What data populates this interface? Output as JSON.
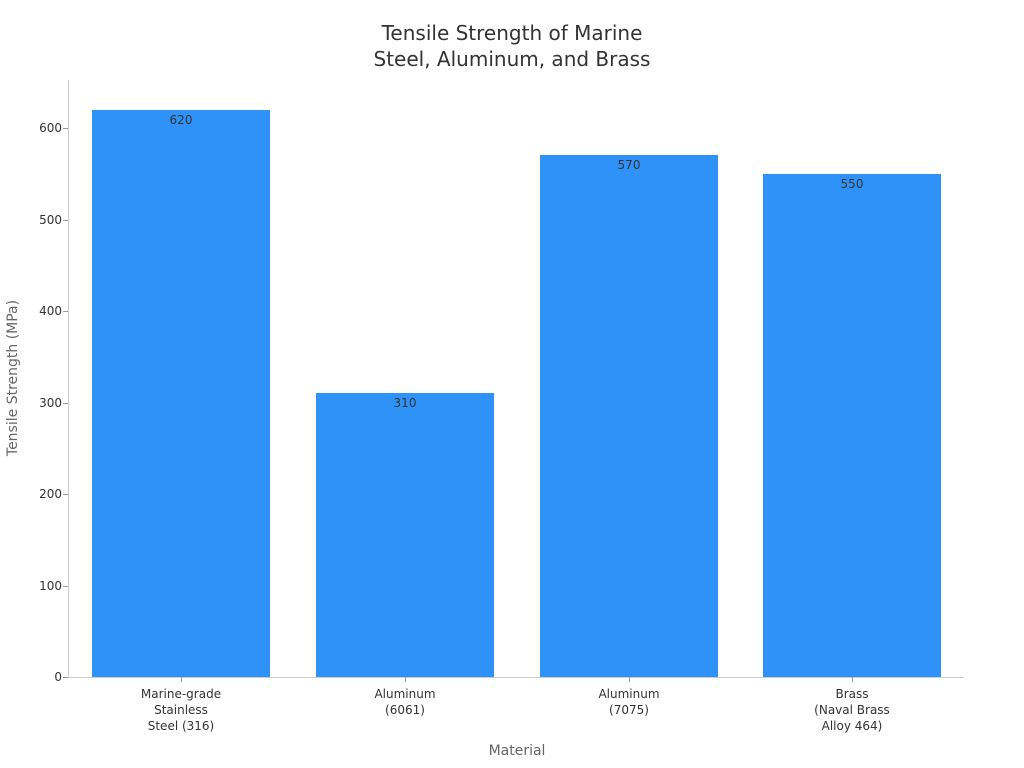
{
  "chart_data": {
    "type": "bar",
    "title": "Tensile Strength of Marine\nSteel, Aluminum, and Brass",
    "title_lines": [
      "Tensile Strength of Marine",
      "Steel, Aluminum, and Brass"
    ],
    "xlabel": "Material",
    "ylabel": "Tensile Strength (MPa)",
    "categories": [
      "Marine-grade\nStainless\nSteel (316)",
      "Aluminum\n(6061)",
      "Aluminum\n(7075)",
      "Brass\n(Naval Brass\nAlloy 464)"
    ],
    "values": [
      620,
      310,
      570,
      550
    ],
    "value_labels": [
      "620",
      "310",
      "570",
      "550"
    ],
    "yticks": [
      "0",
      "100",
      "200",
      "300",
      "400",
      "500",
      "600"
    ],
    "ylim": [
      0,
      650
    ],
    "grid": false,
    "legend": null,
    "bar_color": "#2f92f8"
  }
}
